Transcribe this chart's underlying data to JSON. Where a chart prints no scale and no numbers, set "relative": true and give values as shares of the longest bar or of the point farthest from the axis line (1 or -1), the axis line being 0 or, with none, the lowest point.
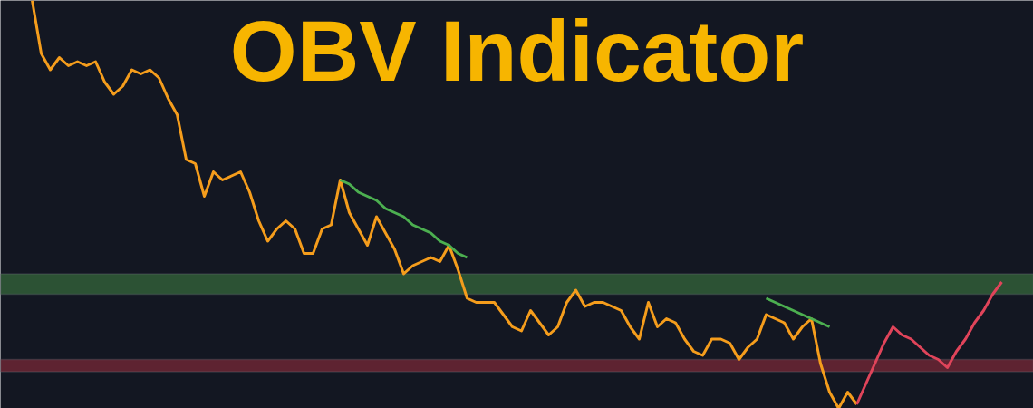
{
  "chart_data": {
    "type": "line",
    "title": "OBV Indicator",
    "relative": true,
    "tick_labels": false,
    "grid": false,
    "categories": [
      null,
      null,
      null,
      null,
      null,
      null,
      null,
      null,
      null,
      null,
      null,
      null,
      null,
      null,
      null,
      null,
      null,
      null,
      null,
      null,
      null,
      null,
      null,
      null,
      null,
      null,
      null,
      null,
      null,
      null,
      null,
      null,
      null,
      null,
      null,
      null,
      null,
      null,
      null,
      null,
      null,
      null,
      null,
      null,
      null,
      null,
      null,
      null,
      null,
      null,
      null,
      null,
      null,
      null,
      null,
      null,
      null,
      null,
      null,
      null,
      null,
      null,
      null,
      null,
      null,
      null,
      null,
      null,
      null,
      null,
      null,
      null,
      null,
      null,
      null,
      null,
      null,
      null,
      null,
      null,
      null,
      null,
      null,
      null,
      null,
      null,
      null,
      null,
      null,
      null,
      null,
      null,
      null,
      null,
      null,
      null,
      null,
      null,
      null,
      null,
      null,
      null,
      null,
      null,
      null,
      null,
      null,
      null,
      null,
      null,
      null,
      null,
      null,
      null
    ],
    "series": [
      {
        "color": "#f59d1c",
        "values": [
          null,
          null,
          null,
          1.0,
          0.87,
          0.83,
          0.86,
          0.84,
          0.85,
          0.84,
          0.85,
          0.8,
          0.77,
          0.79,
          0.83,
          0.82,
          0.83,
          0.81,
          0.76,
          0.72,
          0.61,
          0.6,
          0.52,
          0.58,
          0.56,
          0.57,
          0.58,
          0.53,
          0.46,
          0.41,
          0.44,
          0.46,
          0.44,
          0.38,
          0.38,
          0.44,
          0.45,
          0.56,
          0.48,
          0.44,
          0.4,
          0.47,
          0.43,
          0.39,
          0.33,
          0.35,
          0.36,
          0.37,
          0.36,
          0.4,
          0.34,
          0.27,
          0.26,
          0.26,
          0.26,
          0.23,
          0.2,
          0.19,
          0.24,
          0.21,
          0.18,
          0.2,
          0.26,
          0.29,
          0.25,
          0.26,
          0.26,
          0.25,
          0.24,
          0.2,
          0.17,
          0.26,
          0.2,
          0.22,
          0.21,
          0.17,
          0.14,
          0.13,
          0.17,
          0.17,
          0.16,
          0.12,
          0.15,
          0.17,
          0.23,
          0.22,
          0.21,
          0.17,
          0.2,
          0.22,
          0.11,
          0.04,
          0.0,
          0.04,
          0.01,
          null,
          null,
          null,
          null,
          null,
          null,
          null,
          null,
          null,
          null,
          null,
          null,
          null,
          null,
          null,
          null,
          null,
          null,
          null
        ]
      },
      {
        "color": "#4caf50",
        "values": [
          null,
          null,
          null,
          null,
          null,
          null,
          null,
          null,
          null,
          null,
          null,
          null,
          null,
          null,
          null,
          null,
          null,
          null,
          null,
          null,
          null,
          null,
          null,
          null,
          null,
          null,
          null,
          null,
          null,
          null,
          null,
          null,
          null,
          null,
          null,
          null,
          null,
          0.56,
          0.55,
          0.53,
          0.52,
          0.51,
          0.49,
          0.48,
          0.47,
          0.45,
          0.44,
          0.43,
          0.41,
          0.4,
          0.38,
          0.37,
          null,
          null,
          null,
          null,
          null,
          null,
          null,
          null,
          null,
          null,
          null,
          null,
          null,
          null,
          null,
          null,
          null,
          null,
          null,
          null,
          null,
          null,
          null,
          null,
          null,
          null,
          null,
          null,
          null,
          null,
          null,
          null,
          0.27,
          0.26,
          0.25,
          0.24,
          0.23,
          0.22,
          0.21,
          0.2,
          null,
          null,
          null,
          null,
          null,
          null,
          null,
          null,
          null,
          null,
          null,
          null,
          null,
          null,
          null,
          null,
          null,
          null,
          null,
          null,
          null,
          null
        ]
      },
      {
        "color": "#e0445a",
        "values": [
          null,
          null,
          null,
          null,
          null,
          null,
          null,
          null,
          null,
          null,
          null,
          null,
          null,
          null,
          null,
          null,
          null,
          null,
          null,
          null,
          null,
          null,
          null,
          null,
          null,
          null,
          null,
          null,
          null,
          null,
          null,
          null,
          null,
          null,
          null,
          null,
          null,
          null,
          null,
          null,
          null,
          null,
          null,
          null,
          null,
          null,
          null,
          null,
          null,
          null,
          null,
          null,
          null,
          null,
          null,
          null,
          null,
          null,
          null,
          null,
          null,
          null,
          null,
          null,
          null,
          null,
          null,
          null,
          null,
          null,
          null,
          null,
          null,
          null,
          null,
          null,
          null,
          null,
          null,
          null,
          null,
          null,
          null,
          null,
          null,
          null,
          null,
          null,
          null,
          null,
          null,
          null,
          null,
          null,
          0.01,
          0.06,
          0.11,
          0.16,
          0.2,
          0.18,
          0.17,
          0.15,
          0.13,
          0.12,
          0.1,
          0.14,
          0.17,
          0.21,
          0.24,
          0.28,
          0.31,
          null,
          null,
          null
        ]
      }
    ],
    "bands": [
      {
        "axis": "y",
        "from": 0.28,
        "to": 0.33,
        "color": "#2c5234"
      },
      {
        "axis": "y",
        "from": 0.09,
        "to": 0.12,
        "color": "#5e2331"
      }
    ]
  }
}
